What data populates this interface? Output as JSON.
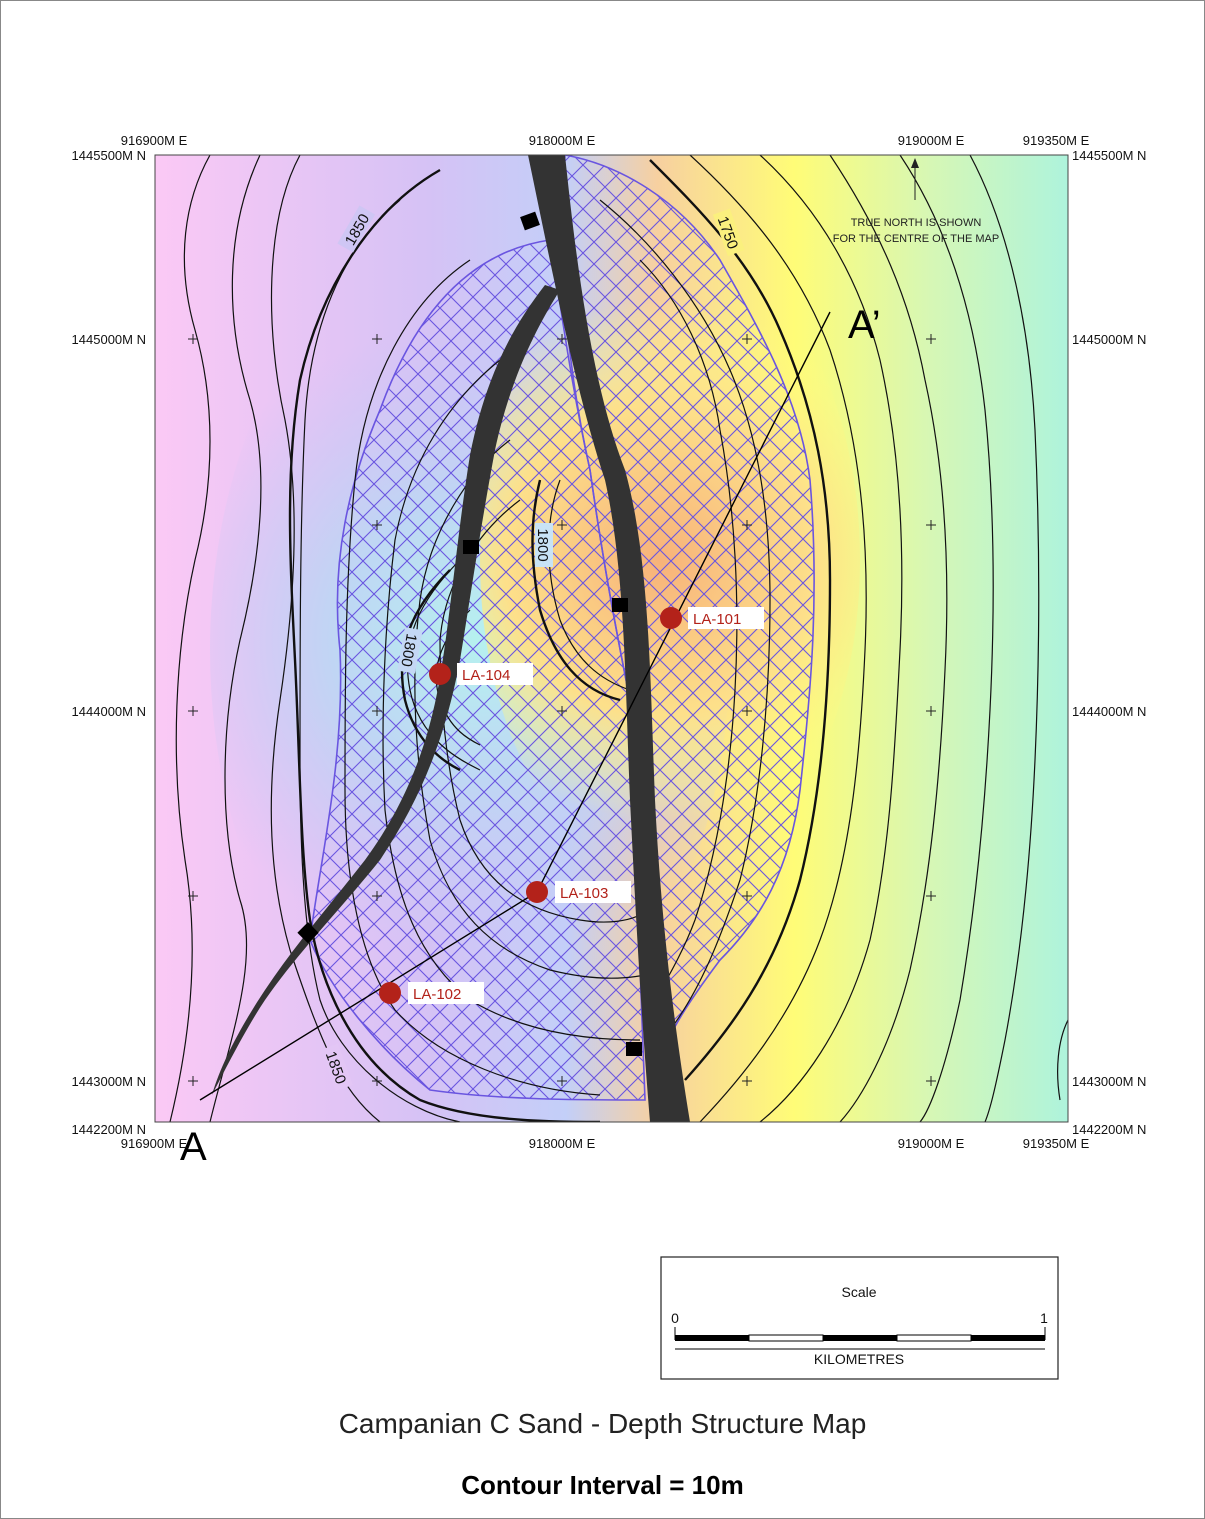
{
  "map": {
    "title": "Campanian C Sand - Depth Structure Map",
    "contour_interval": "Contour Interval = 10m",
    "easting_labels_top": [
      "916900M E",
      "918000M E",
      "919000M E",
      "919350M E"
    ],
    "easting_labels_bottom": [
      "916900M E",
      "918000M E",
      "919000M E",
      "919350M E"
    ],
    "northing_labels_left": [
      "1445500M N",
      "1445000M N",
      "1444000M N",
      "1443000M N",
      "1442200M N"
    ],
    "northing_labels_right": [
      "1445500M N",
      "1445000M N",
      "1444000M N",
      "1443000M N",
      "1442200M N"
    ],
    "north_note": [
      "TRUE NORTH IS SHOWN",
      "FOR THE CENTRE OF THE MAP"
    ],
    "contour_labels": [
      "1850",
      "1750",
      "1800",
      "1800",
      "1850"
    ],
    "wells": [
      {
        "name": "LA-101"
      },
      {
        "name": "LA-102"
      },
      {
        "name": "LA-103"
      },
      {
        "name": "LA-104"
      }
    ],
    "section_labels": {
      "start": "A",
      "end": "A’"
    },
    "scale_bar": {
      "title": "Scale",
      "min": "0",
      "max": "1",
      "unit": "KILOMETRES"
    },
    "colors": {
      "fault": "#333333",
      "well": "#b3221a",
      "hatch": "#6a55e0",
      "shallow": "#ffff66",
      "deep": "#f7c8f2"
    }
  }
}
